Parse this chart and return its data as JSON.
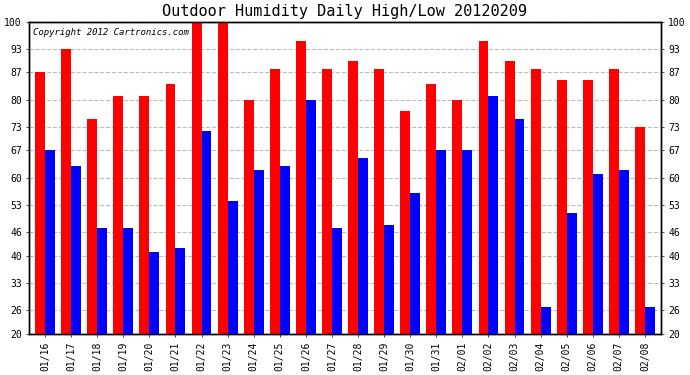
{
  "title": "Outdoor Humidity Daily High/Low 20120209",
  "copyright": "Copyright 2012 Cartronics.com",
  "categories": [
    "01/16",
    "01/17",
    "01/18",
    "01/19",
    "01/20",
    "01/21",
    "01/22",
    "01/23",
    "01/24",
    "01/25",
    "01/26",
    "01/27",
    "01/28",
    "01/29",
    "01/30",
    "01/31",
    "02/01",
    "02/02",
    "02/03",
    "02/04",
    "02/05",
    "02/06",
    "02/07",
    "02/08"
  ],
  "high_values": [
    87,
    93,
    75,
    81,
    81,
    84,
    100,
    100,
    80,
    88,
    95,
    88,
    90,
    88,
    77,
    84,
    80,
    95,
    90,
    88,
    85,
    85,
    88,
    73
  ],
  "low_values": [
    67,
    63,
    47,
    47,
    41,
    42,
    72,
    54,
    62,
    63,
    80,
    47,
    65,
    48,
    56,
    67,
    67,
    81,
    75,
    27,
    51,
    61,
    62,
    27
  ],
  "bar_color_high": "#ff0000",
  "bar_color_low": "#0000ff",
  "background_color": "#ffffff",
  "grid_color": "#bbbbbb",
  "yticks": [
    20,
    26,
    33,
    40,
    46,
    53,
    60,
    67,
    73,
    80,
    87,
    93,
    100
  ],
  "ylim": [
    20,
    100
  ],
  "title_fontsize": 11,
  "copyright_fontsize": 6.5,
  "tick_fontsize": 7,
  "bar_width": 0.38
}
